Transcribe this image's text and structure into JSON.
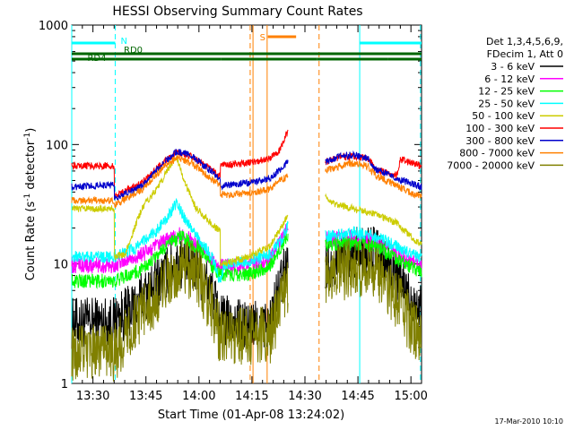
{
  "chart_data": {
    "type": "line",
    "title": "HESSI Observing Summary Count Rates",
    "xlabel": "Start Time (01-Apr-08 13:24:02)",
    "ylabel_main": "Count Rate (s",
    "ylabel_exp1": "-1",
    "ylabel_mid": " detector",
    "ylabel_exp2": "-1",
    "ylabel_end": ")",
    "y_scale": "log",
    "ylim": [
      1,
      1000
    ],
    "xlim_minutes": [
      0,
      99
    ],
    "x_origin": "13:24:02",
    "x_ticks": [
      {
        "t": 6,
        "label": "13:30"
      },
      {
        "t": 21,
        "label": "13:45"
      },
      {
        "t": 36,
        "label": "14:00"
      },
      {
        "t": 51,
        "label": "14:15"
      },
      {
        "t": 66,
        "label": "14:30"
      },
      {
        "t": 81,
        "label": "14:45"
      },
      {
        "t": 96,
        "label": "15:00"
      }
    ],
    "y_ticks": [
      {
        "v": 1,
        "label": "1"
      },
      {
        "v": 10,
        "label": "10"
      },
      {
        "v": 100,
        "label": "100"
      },
      {
        "v": 1000,
        "label": "1000"
      }
    ],
    "legend_header": [
      "Det 1,3,4,5,6,9,",
      "FDecim 1, Att 0"
    ],
    "legend_placement": "right",
    "gaps_minutes": [
      [
        61.3,
        71.8
      ]
    ],
    "series": [
      {
        "name": "3 - 6 keV",
        "color": "#000000",
        "noise": 0.22,
        "points": [
          [
            0,
            3.2
          ],
          [
            12,
            3.3
          ],
          [
            16,
            4.0
          ],
          [
            22,
            6.0
          ],
          [
            28,
            9.2
          ],
          [
            31,
            10.2
          ],
          [
            36,
            8.8
          ],
          [
            40,
            5.5
          ],
          [
            42,
            3.4
          ],
          [
            50,
            3.0
          ],
          [
            56,
            3.1
          ],
          [
            60,
            8.5
          ],
          [
            61.2,
            10.5
          ],
          [
            71.9,
            10.0
          ],
          [
            80,
            12.5
          ],
          [
            86,
            12.8
          ],
          [
            92,
            7.5
          ],
          [
            99,
            4.0
          ]
        ]
      },
      {
        "name": "6 - 12 keV",
        "color": "#ff00ff",
        "noise": 0.07,
        "points": [
          [
            0,
            9.8
          ],
          [
            12,
            9.8
          ],
          [
            20,
            12.0
          ],
          [
            28,
            16.5
          ],
          [
            31,
            17.5
          ],
          [
            36,
            14.5
          ],
          [
            40,
            10.8
          ],
          [
            42,
            9.4
          ],
          [
            50,
            9.6
          ],
          [
            56,
            10.6
          ],
          [
            60,
            17.0
          ],
          [
            61.2,
            20.5
          ],
          [
            71.9,
            16.0
          ],
          [
            80,
            16.5
          ],
          [
            86,
            15.5
          ],
          [
            92,
            12.0
          ],
          [
            99,
            9.5
          ]
        ]
      },
      {
        "name": "12 - 25 keV",
        "color": "#00ff00",
        "noise": 0.06,
        "points": [
          [
            0,
            7.2
          ],
          [
            12,
            7.2
          ],
          [
            20,
            9.0
          ],
          [
            28,
            15.0
          ],
          [
            31,
            17.0
          ],
          [
            36,
            13.5
          ],
          [
            40,
            9.5
          ],
          [
            42,
            8.0
          ],
          [
            50,
            8.2
          ],
          [
            56,
            9.5
          ],
          [
            60,
            15.0
          ],
          [
            61.2,
            18.0
          ],
          [
            71.9,
            14.5
          ],
          [
            80,
            15.0
          ],
          [
            86,
            14.0
          ],
          [
            92,
            11.0
          ],
          [
            99,
            8.5
          ]
        ]
      },
      {
        "name": "25 - 50 keV",
        "color": "#00ffff",
        "noise": 0.05,
        "points": [
          [
            0,
            11.5
          ],
          [
            12,
            11.5
          ],
          [
            18,
            13.5
          ],
          [
            24,
            19.0
          ],
          [
            28,
            27.0
          ],
          [
            29.5,
            32.0
          ],
          [
            31,
            27.0
          ],
          [
            35,
            18.0
          ],
          [
            40,
            11.0
          ],
          [
            42,
            6.8
          ],
          [
            43,
            9.8
          ],
          [
            50,
            10.5
          ],
          [
            56,
            12.0
          ],
          [
            60,
            17.0
          ],
          [
            61.2,
            22.0
          ],
          [
            71.9,
            17.0
          ],
          [
            80,
            18.5
          ],
          [
            86,
            17.0
          ],
          [
            92,
            14.0
          ],
          [
            99,
            11.0
          ]
        ]
      },
      {
        "name": "50 - 100 keV",
        "color": "#cccc00",
        "noise": 0.03,
        "points": [
          [
            0,
            29.0
          ],
          [
            12,
            29.0
          ],
          [
            12.1,
            11.5
          ],
          [
            15,
            12.0
          ],
          [
            20,
            30.0
          ],
          [
            24,
            42.0
          ],
          [
            27,
            60.0
          ],
          [
            29,
            75.0
          ],
          [
            30,
            74.0
          ],
          [
            32,
            48.0
          ],
          [
            35,
            30.0
          ],
          [
            40,
            21.0
          ],
          [
            42,
            19.0
          ],
          [
            42.1,
            9.8
          ],
          [
            50,
            11.5
          ],
          [
            56,
            14.0
          ],
          [
            60,
            22.0
          ],
          [
            61.2,
            26.0
          ],
          [
            71.9,
            37.0
          ],
          [
            74,
            32.0
          ],
          [
            80,
            29.0
          ],
          [
            86,
            26.0
          ],
          [
            92,
            22.0
          ],
          [
            96,
            17.0
          ],
          [
            99,
            14.5
          ]
        ]
      },
      {
        "name": "100 - 300 keV",
        "color": "#ff0000",
        "noise": 0.03,
        "points": [
          [
            0,
            66.0
          ],
          [
            12,
            66.0
          ],
          [
            12.1,
            37.0
          ],
          [
            20,
            48.0
          ],
          [
            26,
            72.0
          ],
          [
            30,
            86.0
          ],
          [
            34,
            80.0
          ],
          [
            40,
            60.0
          ],
          [
            42,
            55.0
          ],
          [
            42.1,
            67.0
          ],
          [
            50,
            70.0
          ],
          [
            56,
            76.0
          ],
          [
            59,
            90.0
          ],
          [
            61.2,
            130.0
          ],
          [
            71.9,
            72.0
          ],
          [
            76,
            78.0
          ],
          [
            80,
            80.0
          ],
          [
            84,
            76.0
          ],
          [
            86,
            62.0
          ],
          [
            92,
            55.0
          ],
          [
            93,
            75.0
          ],
          [
            99,
            66.0
          ]
        ]
      },
      {
        "name": "300 - 800 keV",
        "color": "#0000cc",
        "noise": 0.03,
        "points": [
          [
            0,
            44.0
          ],
          [
            12,
            46.0
          ],
          [
            12.1,
            35.0
          ],
          [
            20,
            45.0
          ],
          [
            26,
            70.0
          ],
          [
            30,
            88.0
          ],
          [
            34,
            80.0
          ],
          [
            40,
            58.0
          ],
          [
            42,
            52.0
          ],
          [
            42.1,
            45.0
          ],
          [
            50,
            48.0
          ],
          [
            56,
            52.0
          ],
          [
            59,
            62.0
          ],
          [
            61.2,
            72.0
          ],
          [
            71.9,
            72.0
          ],
          [
            76,
            80.0
          ],
          [
            80,
            82.0
          ],
          [
            84,
            75.0
          ],
          [
            86,
            62.0
          ],
          [
            92,
            52.0
          ],
          [
            99,
            44.0
          ]
        ]
      },
      {
        "name": "800 - 7000 keV",
        "color": "#ff8000",
        "noise": 0.03,
        "points": [
          [
            0,
            34.0
          ],
          [
            12,
            34.0
          ],
          [
            12.1,
            31.0
          ],
          [
            20,
            42.0
          ],
          [
            26,
            65.0
          ],
          [
            30,
            78.0
          ],
          [
            34,
            70.0
          ],
          [
            40,
            50.0
          ],
          [
            42,
            46.0
          ],
          [
            42.1,
            38.0
          ],
          [
            50,
            39.0
          ],
          [
            56,
            42.0
          ],
          [
            59,
            50.0
          ],
          [
            61.2,
            54.0
          ],
          [
            71.9,
            60.0
          ],
          [
            76,
            67.0
          ],
          [
            80,
            70.0
          ],
          [
            84,
            65.0
          ],
          [
            86,
            55.0
          ],
          [
            92,
            45.0
          ],
          [
            99,
            36.0
          ]
        ]
      },
      {
        "name": "7000 - 20000 keV",
        "color": "#808000",
        "noise": 0.25,
        "points": [
          [
            0,
            1.8
          ],
          [
            12,
            1.8
          ],
          [
            16,
            2.7
          ],
          [
            22,
            4.5
          ],
          [
            28,
            8.0
          ],
          [
            31,
            10.0
          ],
          [
            36,
            7.5
          ],
          [
            40,
            4.0
          ],
          [
            42,
            2.5
          ],
          [
            50,
            2.5
          ],
          [
            56,
            2.5
          ],
          [
            60,
            5.5
          ],
          [
            61.2,
            6.5
          ],
          [
            71.9,
            7.5
          ],
          [
            80,
            9.5
          ],
          [
            86,
            9.0
          ],
          [
            92,
            5.0
          ],
          [
            99,
            2.2
          ]
        ]
      }
    ],
    "annotations": {
      "N": {
        "label": "N",
        "segments": [
          [
            0,
            12.3
          ],
          [
            81.5,
            99
          ]
        ],
        "level": "top",
        "color": "#00ffff",
        "vlines": [
          {
            "t": 0,
            "style": "solid"
          },
          {
            "t": 12.3,
            "style": "dashed"
          },
          {
            "t": 81.5,
            "style": "solid"
          },
          {
            "t": 98.7,
            "style": "dashed"
          }
        ]
      },
      "S": {
        "label": "S",
        "segments": [
          [
            55.5,
            63.5
          ]
        ],
        "level": "upper",
        "color": "#ff8000",
        "vlines": [
          {
            "t": 50.5,
            "style": "dashed"
          },
          {
            "t": 51.3,
            "style": "solid"
          },
          {
            "t": 55.3,
            "style": "solid"
          },
          {
            "t": 70.0,
            "style": "dashed"
          }
        ]
      },
      "RD0": {
        "label": "RD0",
        "segments": [
          [
            0,
            99
          ]
        ],
        "level": "middle",
        "color": "#006600"
      },
      "RD4": {
        "label": "RD4",
        "segments": [
          [
            0,
            12.2
          ],
          [
            12.2,
            42.3
          ],
          [
            42.3,
            69.5
          ],
          [
            69.5,
            89.5
          ],
          [
            89.5,
            99
          ]
        ],
        "level": "lower",
        "color": "#006600"
      }
    }
  },
  "footer_date": "17-Mar-2010 10:10"
}
